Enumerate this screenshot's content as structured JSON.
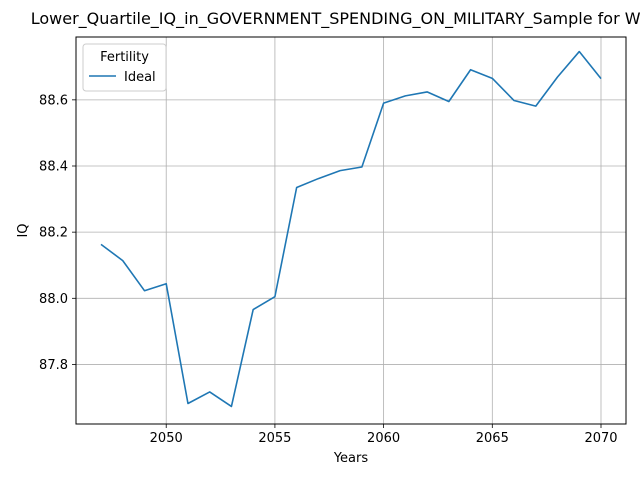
{
  "chart_data": {
    "type": "line",
    "title": "Lower_Quartile_IQ_in_GOVERNMENT_SPENDING_ON_MILITARY_Sample for White",
    "xlabel": "Years",
    "ylabel": "IQ",
    "xlim": [
      2045.85,
      2071.15
    ],
    "ylim": [
      87.62,
      88.79
    ],
    "xticks": [
      2050,
      2055,
      2060,
      2065,
      2070
    ],
    "yticks": [
      87.8,
      88.0,
      88.2,
      88.4,
      88.6
    ],
    "grid": true,
    "legend": {
      "title": "Fertility",
      "placement": "upper-left"
    },
    "series": [
      {
        "name": "Ideal",
        "color": "#1f77b4",
        "x": [
          2047,
          2048,
          2049,
          2050,
          2051,
          2052,
          2053,
          2054,
          2055,
          2056,
          2057,
          2058,
          2059,
          2060,
          2061,
          2062,
          2063,
          2064,
          2065,
          2066,
          2067,
          2068,
          2069,
          2070
        ],
        "y": [
          88.163,
          88.114,
          88.023,
          88.044,
          87.682,
          87.717,
          87.673,
          87.966,
          88.005,
          88.335,
          88.362,
          88.386,
          88.397,
          88.59,
          88.612,
          88.624,
          88.595,
          88.691,
          88.665,
          88.598,
          88.581,
          88.669,
          88.746,
          88.664
        ]
      }
    ]
  }
}
